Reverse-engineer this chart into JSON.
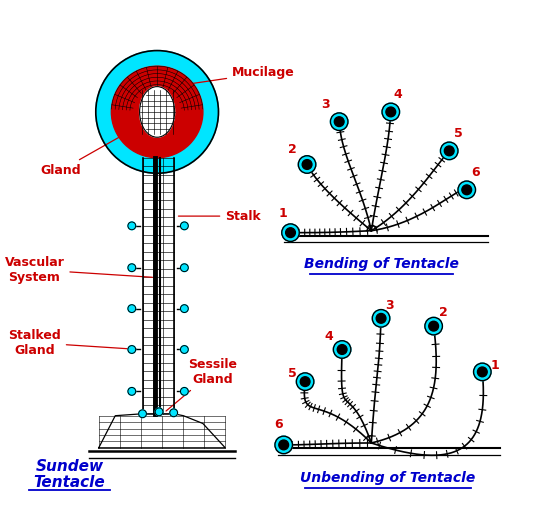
{
  "bg_color": "#ffffff",
  "title_color": "#0000cc",
  "label_color": "#cc0000",
  "cyan_color": "#00e5ff",
  "red_fill": "#cc0000",
  "mucilage_label": "Mucilage",
  "gland_label": "Gland",
  "stalk_label": "Stalk",
  "vascular_label": "Vascular\nSystem",
  "stalked_label": "Stalked\nGland",
  "sessile_label": "Sessile\nGland",
  "sundew_line1": "Sundew",
  "sundew_line2": "Tentacle",
  "bending_title": "Bending of Tentacle",
  "unbending_title": "Unbending of Tentacle",
  "fig_w": 5.47,
  "fig_h": 5.14,
  "dpi": 100
}
